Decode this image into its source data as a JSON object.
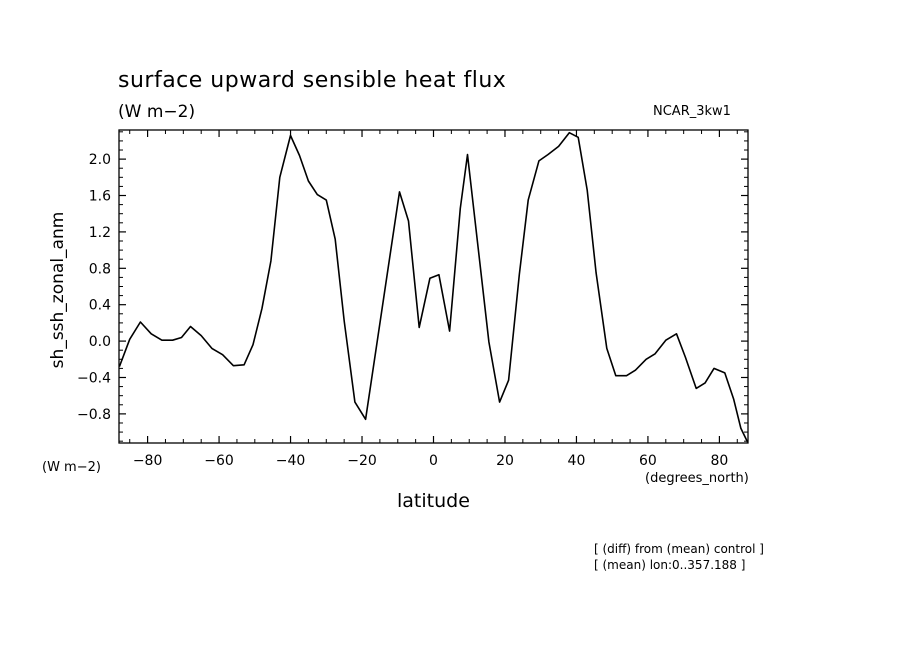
{
  "header": {
    "title": "surface upward sensible heat flux",
    "units": "(W m−2)",
    "model": "NCAR_3kw1"
  },
  "axes": {
    "y_units": "(W m−2)",
    "x_units": "(degrees_north)"
  },
  "notes": {
    "line1": "[ (diff) from (mean) control ]",
    "line2": "[ (mean) lon:0..357.188 ]"
  },
  "chart_data": {
    "type": "line",
    "title": "surface upward sensible heat flux",
    "xlabel": "latitude",
    "ylabel": "sh_ssh_zonal_anm",
    "xlim": [
      -88,
      88
    ],
    "ylim": [
      -1.12,
      2.32
    ],
    "x_ticks": [
      -80,
      -60,
      -40,
      -20,
      0,
      20,
      40,
      60,
      80
    ],
    "y_ticks": [
      -0.8,
      -0.4,
      0.0,
      0.4,
      0.8,
      1.2,
      1.6,
      2.0
    ],
    "y_tick_labels": [
      "−0.8",
      "−0.4",
      "0.0",
      "0.4",
      "0.8",
      "1.2",
      "1.6",
      "2.0"
    ],
    "x_tick_labels": [
      "−80",
      "−60",
      "−40",
      "−20",
      "0",
      "20",
      "40",
      "60",
      "80"
    ],
    "grid": false,
    "series": [
      {
        "color": "#000000",
        "x": [
          -87.9,
          -85,
          -82,
          -79,
          -76,
          -73,
          -70.5,
          -68,
          -65,
          -62,
          -59,
          -56,
          -53,
          -50.5,
          -48,
          -45.5,
          -43,
          -40,
          -37.5,
          -35,
          -32.5,
          -30,
          -27.5,
          -25,
          -22,
          -19,
          -16,
          -13,
          -9.5,
          -7,
          -4,
          -1,
          1.5,
          4.5,
          7.5,
          9.5,
          12.5,
          15.5,
          18.5,
          21,
          24,
          26.5,
          29.5,
          32,
          35,
          38,
          40.5,
          43,
          45.5,
          48.5,
          51,
          54,
          56.5,
          59.5,
          62,
          65,
          68,
          70.5,
          73.5,
          76,
          78.5,
          81.5,
          84,
          86,
          87.9
        ],
        "y": [
          -0.28,
          0.02,
          0.21,
          0.08,
          0.01,
          0.01,
          0.04,
          0.16,
          0.06,
          -0.08,
          -0.15,
          -0.27,
          -0.26,
          -0.04,
          0.36,
          0.88,
          1.8,
          2.26,
          2.04,
          1.76,
          1.61,
          1.55,
          1.12,
          0.22,
          -0.67,
          -0.86,
          -0.07,
          0.72,
          1.64,
          1.32,
          0.15,
          0.69,
          0.73,
          0.11,
          1.46,
          2.05,
          1.02,
          -0.01,
          -0.67,
          -0.43,
          0.73,
          1.55,
          1.98,
          2.05,
          2.14,
          2.29,
          2.24,
          1.66,
          0.75,
          -0.08,
          -0.38,
          -0.38,
          -0.32,
          -0.2,
          -0.14,
          0.01,
          0.08,
          -0.18,
          -0.52,
          -0.46,
          -0.3,
          -0.35,
          -0.64,
          -0.96,
          -1.11
        ]
      }
    ]
  }
}
